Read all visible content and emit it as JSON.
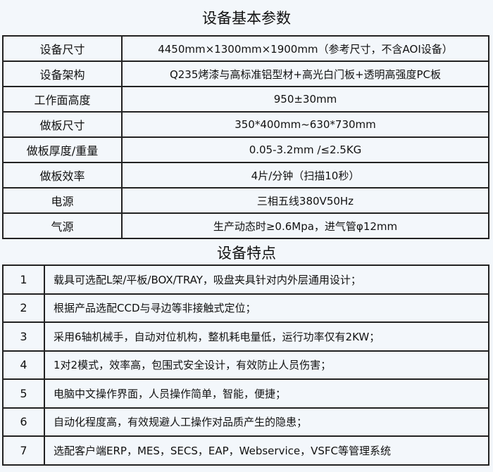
{
  "params": {
    "title": "设备基本参数",
    "rows": [
      {
        "label": "设备尺寸",
        "value": "4450mm×1300mm×1900mm（参考尺寸，不含AOI设备）"
      },
      {
        "label": "设备架构",
        "value": "Q235烤漆与高标准铝型材+高光白门板+透明高强度PC板"
      },
      {
        "label": "工作面高度",
        "value": "950±30mm"
      },
      {
        "label": "做板尺寸",
        "value": "350*400mm~630*730mm"
      },
      {
        "label": "做板厚度/重量",
        "value": "0.05-3.2mm /≤2.5KG"
      },
      {
        "label": "做板效率",
        "value": "4片/分钟（扫描10秒）"
      },
      {
        "label": "电源",
        "value": "三相五线380V50Hz"
      },
      {
        "label": "气源",
        "value": "生产动态时≥0.6Mpa，进气管φ12mm"
      }
    ]
  },
  "features": {
    "title": "设备特点",
    "rows": [
      {
        "no": "1",
        "text": "载具可选配L架/平板/BOX/TRAY，吸盘夹具针对内外层通用设计；"
      },
      {
        "no": "2",
        "text": "根据产品选配CCD与寻边等非接触式定位；"
      },
      {
        "no": "3",
        "text": "采用6轴机械手，自动对位机构，整机耗电量低，运行功率仅有2KW；"
      },
      {
        "no": "4",
        "text": "1对2模式，效率高，包围式安全设计，有效防止人员伤害；"
      },
      {
        "no": "5",
        "text": "电脑中文操作界面，人员操作简单，智能，便捷；"
      },
      {
        "no": "6",
        "text": "自动化程度高，有效规避人工操作对品质产生的隐患；"
      },
      {
        "no": "7",
        "text": "选配客户端ERP，MES，SECS，EAP，Webservice，VSFC等管理系统"
      }
    ]
  }
}
